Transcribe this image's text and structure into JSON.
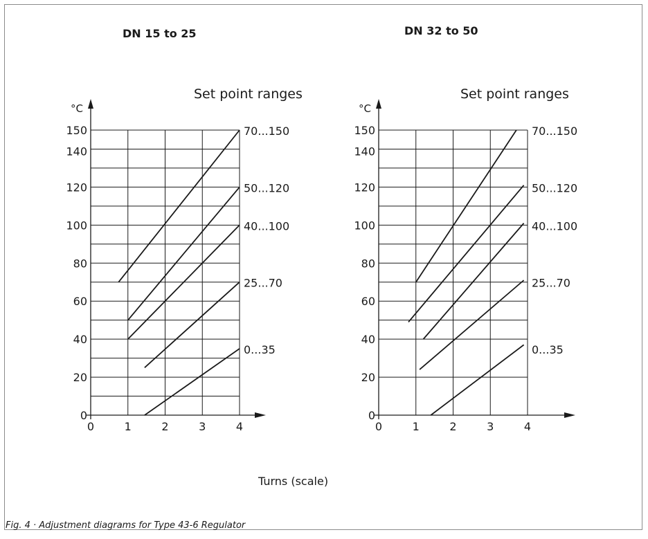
{
  "caption": "Fig. 4 · Adjustment diagrams for Type 43-6 Regulator",
  "x_axis_title": "Turns (scale)",
  "chart_data": [
    {
      "type": "line",
      "title": "DN 15 to 25",
      "legend_title": "Set point ranges",
      "ylabel": "°C",
      "xlabel": "Turns (scale)",
      "xlim": [
        0,
        4
      ],
      "ylim": [
        0,
        150
      ],
      "x_ticks": [
        "0",
        "1",
        "2",
        "3",
        "4"
      ],
      "y_ticks": [
        "0",
        "20",
        "40",
        "60",
        "80",
        "100",
        "120",
        "140",
        "150"
      ],
      "grid": true,
      "series": [
        {
          "name": "70...150",
          "x": [
            0.75,
            4
          ],
          "y": [
            70,
            150
          ]
        },
        {
          "name": "50...120",
          "x": [
            1,
            4
          ],
          "y": [
            50,
            120
          ]
        },
        {
          "name": "40...100",
          "x": [
            1,
            4
          ],
          "y": [
            40,
            100
          ]
        },
        {
          "name": "25...70",
          "x": [
            1.45,
            4
          ],
          "y": [
            25,
            70
          ]
        },
        {
          "name": "0...35",
          "x": [
            1.45,
            4
          ],
          "y": [
            0,
            35
          ]
        }
      ]
    },
    {
      "type": "line",
      "title": "DN 32 to 50",
      "legend_title": "Set point ranges",
      "ylabel": "°C",
      "xlabel": "Turns (scale)",
      "xlim": [
        0,
        4
      ],
      "ylim": [
        0,
        150
      ],
      "x_ticks": [
        "0",
        "1",
        "2",
        "3",
        "4"
      ],
      "y_ticks": [
        "0",
        "20",
        "40",
        "60",
        "80",
        "100",
        "120",
        "140",
        "150"
      ],
      "grid": true,
      "series": [
        {
          "name": "70...150",
          "x": [
            1,
            3.7
          ],
          "y": [
            70,
            150
          ]
        },
        {
          "name": "50...120",
          "x": [
            0.8,
            3.9
          ],
          "y": [
            49,
            121
          ]
        },
        {
          "name": "40...100",
          "x": [
            1.2,
            3.9
          ],
          "y": [
            40,
            101
          ]
        },
        {
          "name": "25...70",
          "x": [
            1.1,
            3.9
          ],
          "y": [
            24,
            71
          ]
        },
        {
          "name": "0...35",
          "x": [
            1.4,
            3.9
          ],
          "y": [
            0,
            37
          ]
        }
      ]
    }
  ]
}
